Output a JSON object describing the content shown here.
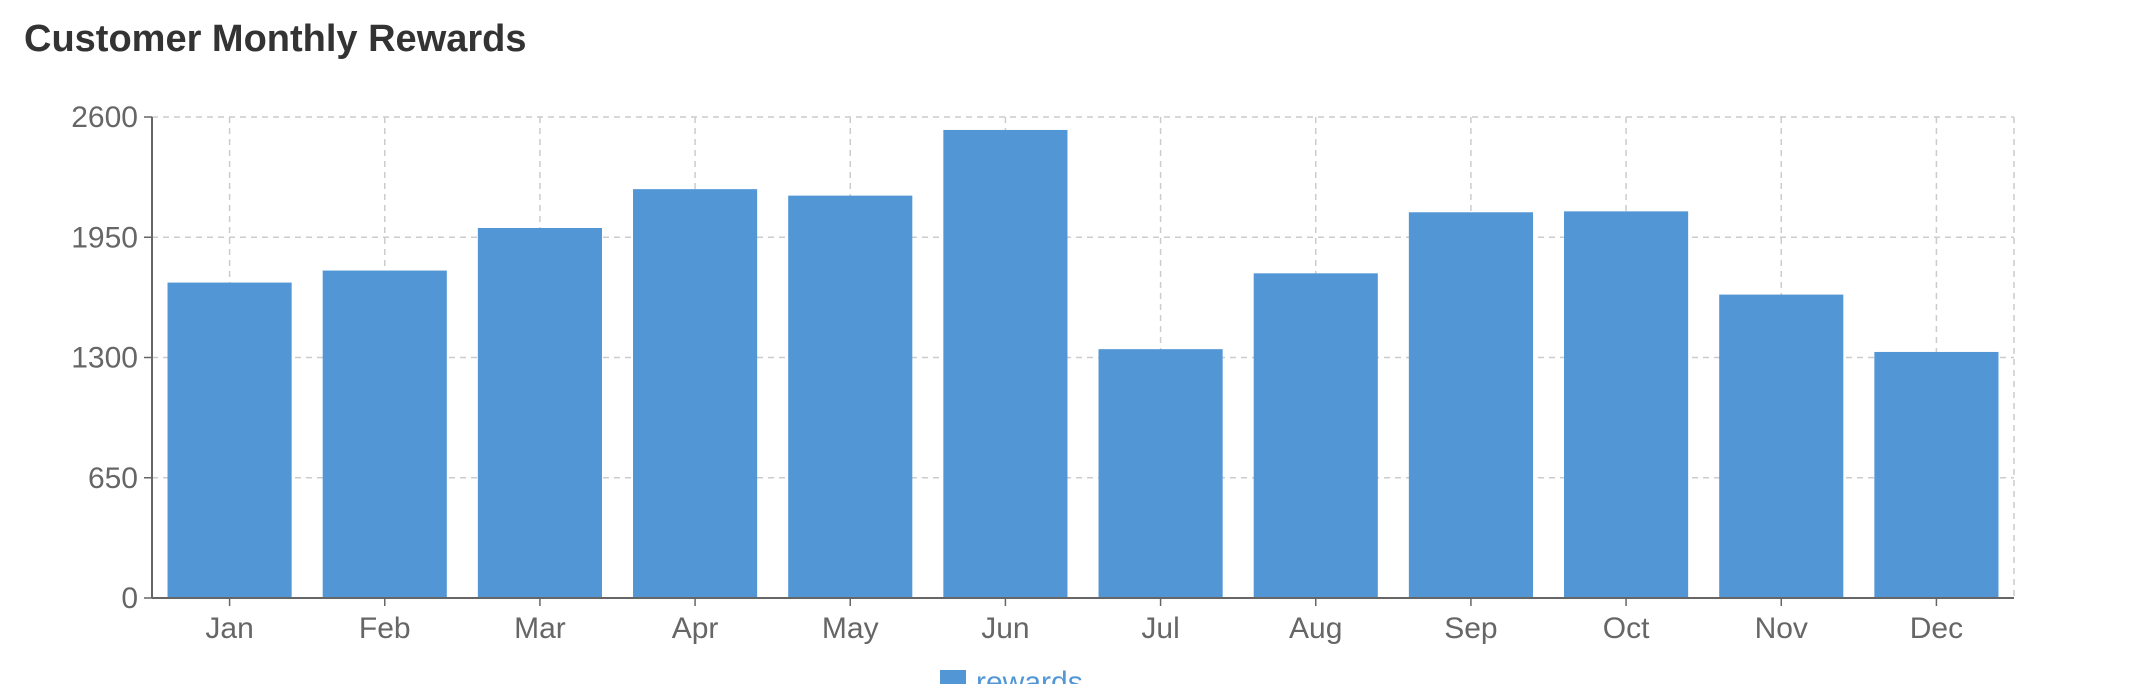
{
  "chart_data": {
    "type": "bar",
    "title": "Customer Monthly Rewards",
    "xlabel": "",
    "ylabel": "",
    "categories": [
      "Jan",
      "Feb",
      "Mar",
      "Apr",
      "May",
      "Jun",
      "Jul",
      "Aug",
      "Sep",
      "Oct",
      "Nov",
      "Dec"
    ],
    "series": [
      {
        "name": "rewards",
        "values": [
          1705,
          1770,
          2000,
          2210,
          2175,
          2530,
          1345,
          1755,
          2085,
          2090,
          1640,
          1330
        ]
      }
    ],
    "ylim": [
      0,
      2600
    ],
    "yticks": [
      "0",
      "650",
      "1300",
      "1950",
      "2600"
    ],
    "grid": true,
    "legend_position": "bottom-center",
    "colors": {
      "bar": "#5296d6",
      "grid": "#cccccc",
      "axis": "#666666",
      "legend_text": "#5296d6"
    }
  }
}
